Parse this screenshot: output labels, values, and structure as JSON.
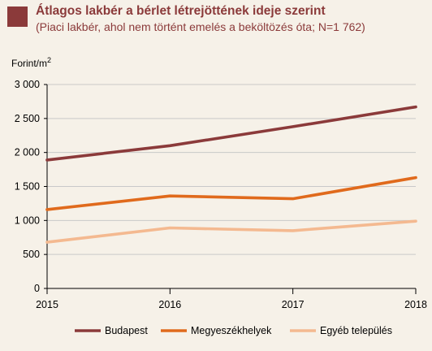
{
  "header": {
    "title": "Átlagos lakbér a bérlet létrejöttének ideje szerint",
    "subtitle": "(Piaci lakbér, ahol nem történt emelés a beköltözés óta; N=1 762)"
  },
  "colors": {
    "accent": "#8b3a3a",
    "budapest": "#8b3a3a",
    "megyeszekhelyek": "#e06a1c",
    "egyeb": "#f4b990",
    "background": "#f6f1e8"
  },
  "chart_data": {
    "type": "line",
    "title": "Átlagos lakbér a bérlet létrejöttének ideje szerint",
    "subtitle": "(Piaci lakbér, ahol nem történt emelés a beköltözés óta; N=1 762)",
    "ylabel_unit": "Forint/m",
    "ylabel_unit_sup": "2",
    "xlabel": "",
    "x": [
      "2015",
      "2016",
      "2017",
      "2018"
    ],
    "ylim": [
      0,
      3000
    ],
    "yticks": [
      0,
      500,
      1000,
      1500,
      2000,
      2500,
      3000
    ],
    "ytick_labels": [
      "0",
      "500",
      "1 000",
      "1 500",
      "2 000",
      "2 500",
      "3 000"
    ],
    "grid": true,
    "legend_position": "bottom",
    "series": [
      {
        "name": "Budapest",
        "color": "#8b3a3a",
        "values": [
          1890,
          2100,
          2380,
          2670
        ]
      },
      {
        "name": "Megyeszékhelyek",
        "color": "#e06a1c",
        "values": [
          1160,
          1360,
          1320,
          1630
        ]
      },
      {
        "name": "Egyéb település",
        "color": "#f4b990",
        "values": [
          680,
          890,
          850,
          990
        ]
      }
    ]
  }
}
